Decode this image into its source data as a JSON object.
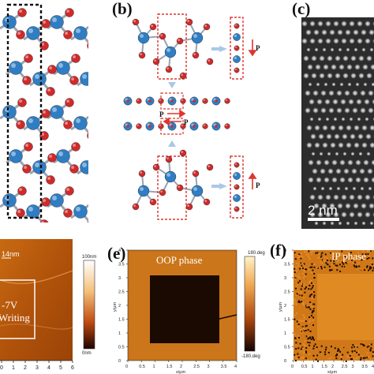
{
  "figure": {
    "panels": {
      "a": {
        "label": ""
      },
      "b": {
        "label": "(b)",
        "arrows": [
          "P",
          "P",
          "P",
          "P"
        ]
      },
      "c": {
        "label": "(c)",
        "scale_bar": "2 nm"
      },
      "d": {
        "label": "",
        "thickness_text": "14nm",
        "writing_text": "-7V\nWriting",
        "x_ticks": [
          "0",
          "1",
          "2",
          "3",
          "4",
          "5",
          "6"
        ],
        "colorbar": {
          "max": "100nm",
          "min": "0nm"
        }
      },
      "e": {
        "label": "(e)",
        "title": "OOP phase",
        "x_ticks": [
          "0",
          "0.5",
          "1",
          "1.5",
          "2",
          "2.5",
          "3",
          "3.5",
          "4"
        ],
        "y_ticks": [
          "0",
          "0.5",
          "1",
          "1.5",
          "2",
          "2.5",
          "3",
          "3.5",
          "4"
        ],
        "xlabel": "x/μm",
        "ylabel": "y/μm",
        "colorbar": {
          "max": "180.deg",
          "min": "-180.deg"
        }
      },
      "f": {
        "label": "(f)",
        "title": "IP phase",
        "x_ticks": [
          "0",
          "0.5",
          "1",
          "1.5",
          "2",
          "2.5",
          "3",
          "3.5",
          "4"
        ],
        "y_ticks": [
          "0",
          "0.5",
          "1",
          "1.5",
          "2",
          "2.5",
          "3",
          "3.5",
          "4"
        ],
        "xlabel": "x/μm",
        "ylabel": "y/μm"
      }
    },
    "colors": {
      "atom_blue": "#2f7ec4",
      "atom_red": "#d02a2a",
      "dash_red": "#e0342f",
      "afm_orange": "#b4560c",
      "phase_dark": "#1b0a02"
    }
  }
}
